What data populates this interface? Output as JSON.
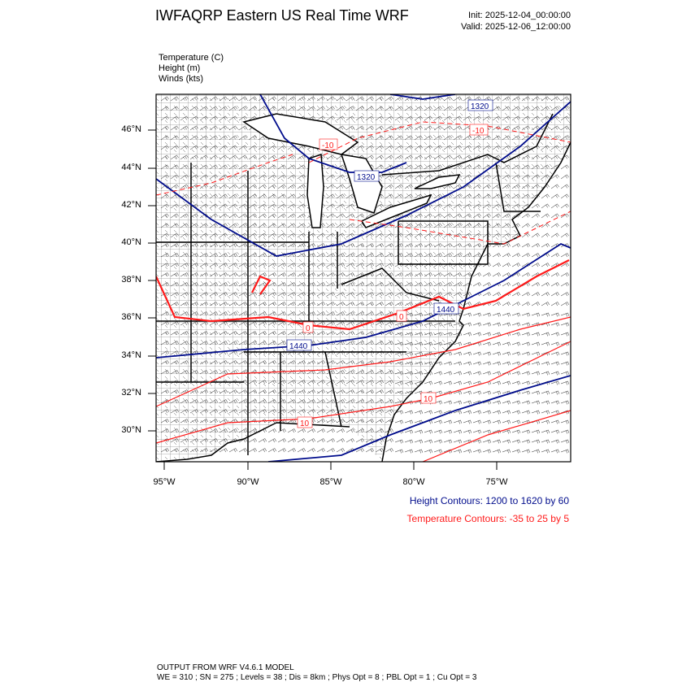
{
  "header": {
    "title": "IWFAQRP Eastern US Real Time WRF",
    "init": "Init: 2025-12-04_00:00:00",
    "valid": "Valid: 2025-12-06_12:00:00"
  },
  "fields": [
    "Temperature   (C)",
    "Height   (m)",
    "Winds   (kts)"
  ],
  "axes": {
    "lat_labels": [
      "46°N",
      "44°N",
      "42°N",
      "40°N",
      "38°N",
      "36°N",
      "34°N",
      "32°N",
      "30°N"
    ],
    "lon_labels": [
      "95°W",
      "90°W",
      "85°W",
      "80°W",
      "75°W"
    ]
  },
  "contour_labels": {
    "height": [
      "1320",
      "1320",
      "1440",
      "1440"
    ],
    "temperature": [
      "-10",
      "-10",
      "0",
      "0",
      "10",
      "10"
    ]
  },
  "legend": {
    "height": "Height Contours: 1200 to 1620 by 60",
    "temperature": "Temperature Contours: -35 to 25 by 5"
  },
  "colors": {
    "height": "#000c8c",
    "temperature": "#ff1a1a",
    "boundaries": "#000000"
  },
  "footer": {
    "line1": "OUTPUT FROM WRF V4.6.1 MODEL",
    "line2": "WE = 310 ; SN = 275 ; Levels = 38 ; Dis = 8km ; Phys Opt = 8 ; PBL Opt = 1 ; Cu Opt = 3"
  }
}
